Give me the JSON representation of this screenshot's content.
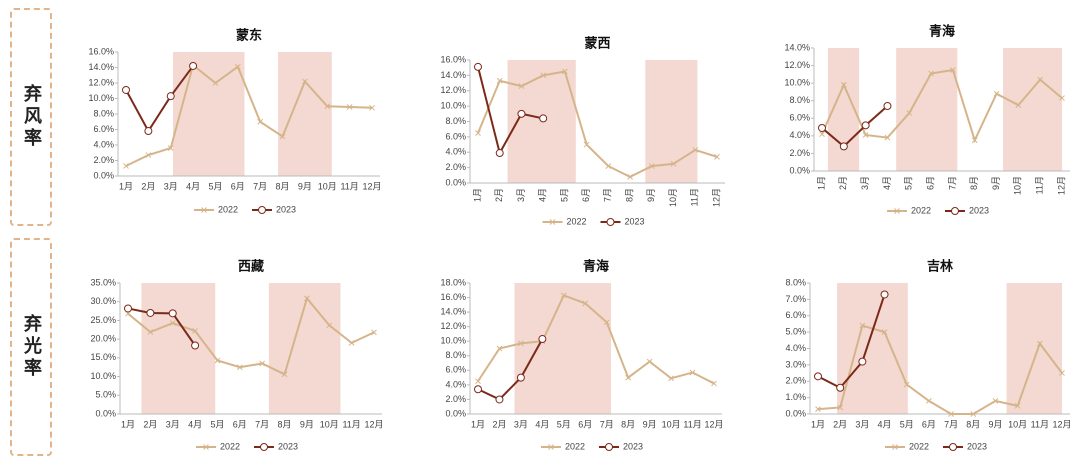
{
  "row_labels": [
    "弃风率",
    "弃光率"
  ],
  "chart_data": [
    {
      "type": "line",
      "title": "蒙东",
      "categories": [
        "1月",
        "2月",
        "3月",
        "4月",
        "5月",
        "6月",
        "7月",
        "8月",
        "9月",
        "10月",
        "11月",
        "12月"
      ],
      "series": [
        {
          "name": "2022",
          "color": "#d6b48a",
          "values": [
            1.3,
            2.7,
            3.6,
            14.3,
            12.0,
            14.1,
            7.0,
            5.1,
            12.2,
            9.0,
            8.9,
            8.8
          ]
        },
        {
          "name": "2023",
          "color": "#7b2a1a",
          "values": [
            11.1,
            5.8,
            10.3,
            14.2,
            null,
            null,
            null,
            null,
            null,
            null,
            null,
            null
          ]
        }
      ],
      "ylim": [
        0,
        16
      ],
      "yticks": [
        {
          "value": 0,
          "label": "0.0%"
        },
        {
          "value": 2,
          "label": "2.0%"
        },
        {
          "value": 4,
          "label": "4.0%"
        },
        {
          "value": 6,
          "label": "6.0%"
        },
        {
          "value": 8,
          "label": "8.0%"
        },
        {
          "value": 10,
          "label": "10.0%"
        },
        {
          "value": 12,
          "label": "12.0%"
        },
        {
          "value": 14,
          "label": "14.0%"
        },
        {
          "value": 16,
          "label": "16.0%"
        }
      ]
    },
    {
      "type": "line",
      "title": "蒙西",
      "categories": [
        "1月",
        "2月",
        "3月",
        "4月",
        "5月",
        "6月",
        "7月",
        "8月",
        "9月",
        "10月",
        "11月",
        "12月"
      ],
      "series": [
        {
          "name": "2022",
          "color": "#d6b48a",
          "values": [
            6.5,
            13.3,
            12.6,
            14.0,
            14.5,
            5.0,
            2.2,
            0.8,
            2.2,
            2.5,
            4.3,
            3.4
          ]
        },
        {
          "name": "2023",
          "color": "#7b2a1a",
          "values": [
            15.1,
            3.9,
            9.0,
            8.4,
            null,
            null,
            null,
            null,
            null,
            null,
            null,
            null
          ]
        }
      ],
      "ylim": [
        0,
        16
      ],
      "yticks": [
        {
          "value": 0,
          "label": "0.0%"
        },
        {
          "value": 2,
          "label": "2.0%"
        },
        {
          "value": 4,
          "label": "4.0%"
        },
        {
          "value": 6,
          "label": "6.0%"
        },
        {
          "value": 8,
          "label": "8.0%"
        },
        {
          "value": 10,
          "label": "10.0%"
        },
        {
          "value": 12,
          "label": "12.0%"
        },
        {
          "value": 14,
          "label": "14.0%"
        },
        {
          "value": 16,
          "label": "16.0%"
        }
      ]
    },
    {
      "type": "line",
      "title": "青海",
      "categories": [
        "1月",
        "2月",
        "3月",
        "4月",
        "5月",
        "6月",
        "7月",
        "8月",
        "9月",
        "10月",
        "11月",
        "12月"
      ],
      "series": [
        {
          "name": "2022",
          "color": "#d6b48a",
          "values": [
            4.2,
            9.8,
            4.1,
            3.8,
            6.6,
            11.1,
            11.5,
            3.5,
            8.8,
            7.5,
            10.4,
            8.3
          ]
        },
        {
          "name": "2023",
          "color": "#7b2a1a",
          "values": [
            4.9,
            2.8,
            5.2,
            7.4,
            null,
            null,
            null,
            null,
            null,
            null,
            null,
            null
          ]
        }
      ],
      "ylim": [
        0,
        14
      ],
      "yticks": [
        {
          "value": 0,
          "label": "0.0%"
        },
        {
          "value": 2,
          "label": "2.0%"
        },
        {
          "value": 4,
          "label": "4.0%"
        },
        {
          "value": 6,
          "label": "6.0%"
        },
        {
          "value": 8,
          "label": "8.0%"
        },
        {
          "value": 10,
          "label": "10.0%"
        },
        {
          "value": 12,
          "label": "12.0%"
        },
        {
          "value": 14,
          "label": "14.0%"
        }
      ]
    },
    {
      "type": "line",
      "title": "西藏",
      "categories": [
        "1月",
        "2月",
        "3月",
        "4月",
        "5月",
        "6月",
        "7月",
        "8月",
        "9月",
        "10月",
        "11月",
        "12月"
      ],
      "series": [
        {
          "name": "2022",
          "color": "#d6b48a",
          "values": [
            26.8,
            21.9,
            24.3,
            22.2,
            14.3,
            12.5,
            13.5,
            10.6,
            30.9,
            23.7,
            19.0,
            21.8
          ]
        },
        {
          "name": "2023",
          "color": "#7b2a1a",
          "values": [
            28.2,
            27.0,
            26.9,
            18.3,
            null,
            null,
            null,
            null,
            null,
            null,
            null,
            null
          ]
        }
      ],
      "ylim": [
        0,
        35
      ],
      "yticks": [
        {
          "value": 0,
          "label": "0.0%"
        },
        {
          "value": 5,
          "label": "5.0%"
        },
        {
          "value": 10,
          "label": "10.0%"
        },
        {
          "value": 15,
          "label": "15.0%"
        },
        {
          "value": 20,
          "label": "20.0%"
        },
        {
          "value": 25,
          "label": "25.0%"
        },
        {
          "value": 30,
          "label": "30.0%"
        },
        {
          "value": 35,
          "label": "35.0%"
        }
      ]
    },
    {
      "type": "line",
      "title": "青海",
      "categories": [
        "1月",
        "2月",
        "3月",
        "4月",
        "5月",
        "6月",
        "7月",
        "8月",
        "9月",
        "10月",
        "11月",
        "12月"
      ],
      "series": [
        {
          "name": "2022",
          "color": "#d6b48a",
          "values": [
            4.5,
            9.0,
            9.7,
            10.0,
            16.3,
            15.2,
            12.6,
            5.0,
            7.2,
            4.9,
            5.7,
            4.2
          ]
        },
        {
          "name": "2023",
          "color": "#7b2a1a",
          "values": [
            3.4,
            2.0,
            5.0,
            10.3,
            null,
            null,
            null,
            null,
            null,
            null,
            null,
            null
          ]
        }
      ],
      "ylim": [
        0,
        18
      ],
      "yticks": [
        {
          "value": 0,
          "label": "0.0%"
        },
        {
          "value": 2,
          "label": "2.0%"
        },
        {
          "value": 4,
          "label": "4.0%"
        },
        {
          "value": 6,
          "label": "6.0%"
        },
        {
          "value": 8,
          "label": "8.0%"
        },
        {
          "value": 10,
          "label": "10.0%"
        },
        {
          "value": 12,
          "label": "12.0%"
        },
        {
          "value": 14,
          "label": "14.0%"
        },
        {
          "value": 16,
          "label": "16.0%"
        },
        {
          "value": 18,
          "label": "18.0%"
        }
      ]
    },
    {
      "type": "line",
      "title": "吉林",
      "categories": [
        "1月",
        "2月",
        "3月",
        "4月",
        "5月",
        "6月",
        "7月",
        "8月",
        "9月",
        "10月",
        "11月",
        "12月"
      ],
      "series": [
        {
          "name": "2022",
          "color": "#d6b48a",
          "values": [
            0.3,
            0.4,
            5.4,
            5.0,
            1.8,
            0.8,
            0.0,
            0.0,
            0.8,
            0.5,
            4.3,
            2.5
          ]
        },
        {
          "name": "2023",
          "color": "#7b2a1a",
          "values": [
            2.3,
            1.6,
            3.2,
            7.3,
            null,
            null,
            null,
            null,
            null,
            null,
            null,
            null
          ]
        }
      ],
      "ylim": [
        0,
        8
      ],
      "yticks": [
        {
          "value": 0,
          "label": "0.0%"
        },
        {
          "value": 1,
          "label": "1.0%"
        },
        {
          "value": 2,
          "label": "2.0%"
        },
        {
          "value": 3,
          "label": "3.0%"
        },
        {
          "value": 4,
          "label": "4.0%"
        },
        {
          "value": 5,
          "label": "5.0%"
        },
        {
          "value": 6,
          "label": "6.0%"
        },
        {
          "value": 7,
          "label": "7.0%"
        },
        {
          "value": 8,
          "label": "8.0%"
        }
      ]
    }
  ]
}
